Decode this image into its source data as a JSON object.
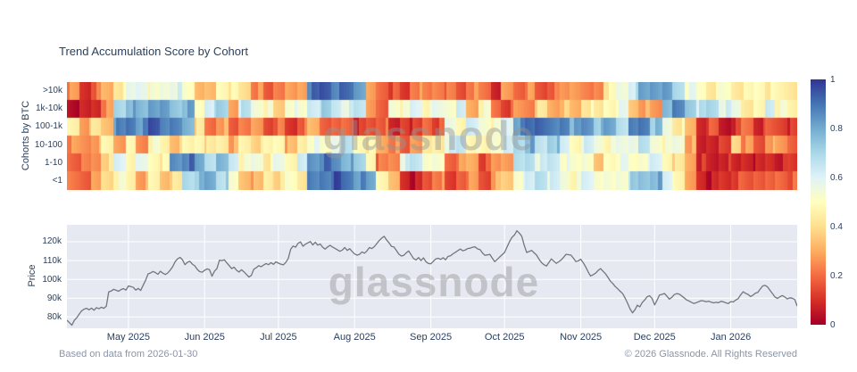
{
  "watermark": "glassnode",
  "footer": {
    "left": "Based on data from 2026-01-30",
    "right": "© 2026 Glassnode. All Rights Reserved"
  },
  "chart_data": [
    {
      "type": "heatmap",
      "title": "Trend Accumulation Score by Cohort",
      "ylabel": "Cohorts by BTC",
      "rows": [
        ">10k",
        "1k-10k",
        "100-1k",
        "10-100",
        "1-10",
        "<1"
      ],
      "zmin": 0,
      "zmax": 1,
      "x_range": [
        "2025-04-06",
        "2026-01-28"
      ],
      "x_days_total": 298,
      "columns": 64,
      "colorbar_ticks": [
        "1",
        "0.8",
        "0.6",
        "0.4",
        "0.2",
        "0"
      ],
      "colorscale_rdylbu": [
        [
          0.0,
          "#a50026"
        ],
        [
          0.1,
          "#d73027"
        ],
        [
          0.2,
          "#f46d43"
        ],
        [
          0.3,
          "#fdae61"
        ],
        [
          0.4,
          "#fee090"
        ],
        [
          0.5,
          "#ffffbf"
        ],
        [
          0.6,
          "#e0f3f8"
        ],
        [
          0.7,
          "#abd9e9"
        ],
        [
          0.8,
          "#74add1"
        ],
        [
          0.9,
          "#4575b4"
        ],
        [
          1.0,
          "#313695"
        ]
      ],
      "values": [
        [
          0.25,
          0.1,
          0.2,
          0.3,
          0.45,
          0.55,
          0.6,
          0.5,
          0.55,
          0.6,
          0.5,
          0.35,
          0.3,
          0.5,
          0.45,
          0.4,
          0.25,
          0.15,
          0.25,
          0.25,
          0.3,
          0.9,
          0.95,
          0.9,
          0.9,
          0.85,
          0.25,
          0.2,
          0.15,
          0.1,
          0.25,
          0.2,
          0.25,
          0.2,
          0.15,
          0.25,
          0.2,
          0.1,
          0.25,
          0.2,
          0.25,
          0.15,
          0.2,
          0.25,
          0.3,
          0.2,
          0.25,
          0.45,
          0.55,
          0.65,
          0.8,
          0.85,
          0.8,
          0.7,
          0.55,
          0.5,
          0.45,
          0.5,
          0.45,
          0.45,
          0.5,
          0.45,
          0.45,
          0.45
        ],
        [
          0.05,
          0.05,
          0.1,
          0.25,
          0.7,
          0.8,
          0.75,
          0.85,
          0.8,
          0.75,
          0.8,
          0.5,
          0.65,
          0.7,
          0.3,
          0.65,
          0.55,
          0.5,
          0.35,
          0.55,
          0.5,
          0.65,
          0.7,
          0.65,
          0.6,
          0.65,
          0.3,
          0.15,
          0.55,
          0.5,
          0.6,
          0.5,
          0.55,
          0.55,
          0.6,
          0.3,
          0.5,
          0.2,
          0.15,
          0.25,
          0.25,
          0.4,
          0.3,
          0.35,
          0.3,
          0.45,
          0.4,
          0.5,
          0.55,
          0.35,
          0.3,
          0.25,
          0.8,
          0.85,
          0.75,
          0.65,
          0.7,
          0.6,
          0.55,
          0.45,
          0.45,
          0.65,
          0.5,
          0.45
        ],
        [
          0.45,
          0.3,
          0.4,
          0.35,
          0.85,
          0.9,
          0.85,
          0.95,
          0.9,
          0.85,
          0.8,
          0.4,
          0.2,
          0.3,
          0.15,
          0.25,
          0.25,
          0.15,
          0.2,
          0.1,
          0.2,
          0.3,
          0.2,
          0.15,
          0.2,
          0.1,
          0.15,
          0.2,
          0.05,
          0.15,
          0.1,
          0.2,
          0.15,
          0.55,
          0.5,
          0.6,
          0.55,
          0.5,
          0.6,
          0.85,
          0.9,
          0.95,
          0.85,
          0.9,
          0.8,
          0.85,
          0.75,
          0.8,
          0.7,
          0.85,
          0.9,
          0.75,
          0.55,
          0.45,
          0.3,
          0.1,
          0.15,
          0.05,
          0.1,
          0.2,
          0.1,
          0.15,
          0.15,
          0.1
        ],
        [
          0.25,
          0.25,
          0.3,
          0.45,
          0.3,
          0.45,
          0.25,
          0.5,
          0.45,
          0.35,
          0.45,
          0.5,
          0.4,
          0.45,
          0.3,
          0.45,
          0.4,
          0.45,
          0.5,
          0.3,
          0.45,
          0.55,
          0.5,
          0.6,
          0.65,
          0.5,
          0.45,
          0.3,
          0.25,
          0.15,
          0.3,
          0.4,
          0.45,
          0.6,
          0.65,
          0.5,
          0.45,
          0.55,
          0.6,
          0.7,
          0.8,
          0.65,
          0.75,
          0.6,
          0.5,
          0.6,
          0.55,
          0.5,
          0.55,
          0.6,
          0.65,
          0.55,
          0.5,
          0.55,
          0.3,
          0.05,
          0.1,
          0.1,
          0.4,
          0.25,
          0.15,
          0.3,
          0.25,
          0.2
        ],
        [
          0.2,
          0.2,
          0.25,
          0.4,
          0.6,
          0.5,
          0.55,
          0.5,
          0.45,
          0.85,
          0.9,
          0.8,
          0.7,
          0.75,
          0.65,
          0.5,
          0.55,
          0.45,
          0.55,
          0.5,
          0.6,
          0.85,
          0.9,
          0.85,
          0.8,
          0.7,
          0.5,
          0.2,
          0.25,
          0.6,
          0.65,
          0.55,
          0.5,
          0.2,
          0.25,
          0.3,
          0.15,
          0.25,
          0.3,
          0.65,
          0.7,
          0.6,
          0.65,
          0.55,
          0.5,
          0.55,
          0.3,
          0.5,
          0.55,
          0.5,
          0.55,
          0.6,
          0.5,
          0.4,
          0.3,
          0.1,
          0.05,
          0.1,
          0.05,
          0.1,
          0.05,
          0.1,
          0.08,
          0.1
        ],
        [
          0.2,
          0.2,
          0.25,
          0.4,
          0.5,
          0.45,
          0.3,
          0.45,
          0.35,
          0.4,
          0.7,
          0.75,
          0.8,
          0.7,
          0.5,
          0.35,
          0.3,
          0.45,
          0.4,
          0.5,
          0.45,
          0.85,
          0.9,
          0.95,
          0.9,
          0.85,
          0.8,
          0.5,
          0.3,
          0.1,
          0.05,
          0.15,
          0.25,
          0.1,
          0.2,
          0.25,
          0.15,
          0.3,
          0.35,
          0.55,
          0.6,
          0.7,
          0.6,
          0.55,
          0.5,
          0.6,
          0.55,
          0.5,
          0.55,
          0.7,
          0.75,
          0.8,
          0.6,
          0.5,
          0.25,
          0.1,
          0.05,
          0.1,
          0.15,
          0.15,
          0.2,
          0.15,
          0.2,
          0.18
        ]
      ]
    },
    {
      "type": "line",
      "name": "BTC Price",
      "ylabel": "Price",
      "ylim": [
        74,
        129
      ],
      "grid": true,
      "plot_bg": "#e7e9f2",
      "grid_color": "#ffffff",
      "line_color": "#73767d",
      "y_ticks": [
        {
          "label": "120k",
          "value": 120
        },
        {
          "label": "110k",
          "value": 110
        },
        {
          "label": "100k",
          "value": 100
        },
        {
          "label": "90k",
          "value": 90
        },
        {
          "label": "80k",
          "value": 80
        }
      ],
      "x_months": [
        {
          "label": "May 2025",
          "day": 25
        },
        {
          "label": "Jun 2025",
          "day": 56
        },
        {
          "label": "Jul 2025",
          "day": 86
        },
        {
          "label": "Aug 2025",
          "day": 117
        },
        {
          "label": "Sep 2025",
          "day": 148
        },
        {
          "label": "Oct 2025",
          "day": 178
        },
        {
          "label": "Nov 2025",
          "day": 209
        },
        {
          "label": "Dec 2025",
          "day": 239
        },
        {
          "label": "Jan 2026",
          "day": 270
        }
      ],
      "x_days_total": 298,
      "prices_daily_usd_k": [
        78.3,
        77.0,
        75.6,
        78.2,
        79.6,
        81.6,
        83.3,
        84.2,
        84.6,
        83.8,
        84.7,
        83.6,
        85.0,
        84.4,
        85.2,
        84.6,
        85.7,
        93.4,
        93.8,
        94.7,
        94.2,
        93.7,
        94.6,
        95.1,
        94.3,
        96.5,
        96.2,
        95.7,
        94.3,
        95.2,
        94.1,
        96.9,
        99.5,
        102.9,
        103.4,
        104.2,
        103.6,
        102.7,
        104.3,
        103.3,
        102.6,
        103.4,
        104.9,
        106.7,
        109.4,
        110.9,
        111.7,
        110.4,
        107.8,
        109.1,
        109.6,
        108.1,
        107.2,
        105.3,
        104.1,
        103.8,
        104.8,
        105.6,
        105.1,
        101.7,
        104.4,
        105.7,
        110.2,
        110.0,
        110.4,
        108.8,
        107.3,
        105.7,
        106.5,
        104.8,
        103.9,
        105.1,
        104.0,
        102.6,
        101.2,
        102.1,
        105.4,
        106.2,
        107.3,
        106.7,
        107.6,
        108.4,
        107.8,
        108.9,
        108.0,
        109.3,
        108.6,
        108.1,
        107.7,
        109.0,
        111.1,
        116.0,
        117.7,
        117.1,
        119.2,
        119.9,
        117.6,
        118.7,
        119.4,
        120.1,
        118.3,
        119.7,
        118.2,
        118.8,
        117.1,
        116.1,
        117.2,
        118.1,
        117.2,
        116.5,
        115.7,
        114.9,
        115.6,
        116.9,
        115.4,
        116.3,
        114.8,
        113.5,
        112.9,
        113.3,
        114.6,
        113.9,
        115.1,
        116.9,
        116.4,
        117.4,
        119.0,
        120.6,
        121.9,
        122.9,
        121.0,
        119.4,
        117.5,
        117.2,
        115.3,
        113.4,
        112.4,
        112.8,
        114.1,
        115.1,
        113.0,
        111.1,
        110.3,
        111.6,
        110.0,
        111.4,
        109.4,
        108.4,
        108.3,
        109.6,
        110.9,
        111.2,
        110.6,
        111.5,
        110.4,
        112.2,
        112.5,
        113.6,
        114.4,
        115.3,
        116.1,
        115.2,
        115.6,
        116.4,
        116.6,
        117.1,
        117.3,
        116.2,
        115.8,
        114.0,
        112.8,
        113.0,
        113.3,
        111.2,
        109.4,
        110.6,
        111.9,
        113.1,
        114.3,
        117.2,
        120.1,
        122.3,
        123.6,
        125.8,
        124.6,
        122.9,
        118.0,
        114.3,
        114.8,
        115.4,
        114.1,
        112.9,
        110.7,
        108.9,
        107.8,
        107.1,
        108.9,
        110.9,
        109.7,
        108.5,
        109.3,
        110.3,
        111.8,
        113.3,
        113.1,
        112.9,
        111.2,
        109.4,
        109.9,
        110.7,
        108.8,
        106.6,
        103.9,
        101.8,
        102.5,
        103.3,
        104.7,
        105.7,
        104.4,
        103.0,
        101.1,
        99.1,
        97.8,
        96.2,
        95.0,
        93.7,
        92.4,
        90.1,
        87.3,
        84.4,
        82.2,
        83.8,
        86.3,
        85.4,
        87.7,
        89.1,
        90.8,
        91.3,
        89.8,
        86.4,
        88.9,
        91.7,
        92.0,
        92.5,
        91.1,
        89.5,
        90.4,
        91.9,
        92.4,
        92.2,
        91.2,
        90.2,
        89.1,
        88.5,
        87.8,
        87.2,
        87.6,
        88.2,
        88.7,
        88.5,
        88.1,
        88.4,
        87.9,
        87.5,
        87.8,
        87.6,
        88.3,
        88.1,
        87.5,
        87.2,
        88.2,
        88.0,
        89.0,
        89.8,
        91.8,
        93.4,
        92.6,
        92.0,
        90.9,
        91.6,
        92.7,
        93.1,
        94.9,
        96.5,
        96.8,
        95.9,
        94.1,
        92.3,
        90.6,
        89.9,
        90.8,
        91.4,
        90.6,
        89.6,
        90.2,
        90.0,
        89.3,
        85.8
      ]
    }
  ]
}
